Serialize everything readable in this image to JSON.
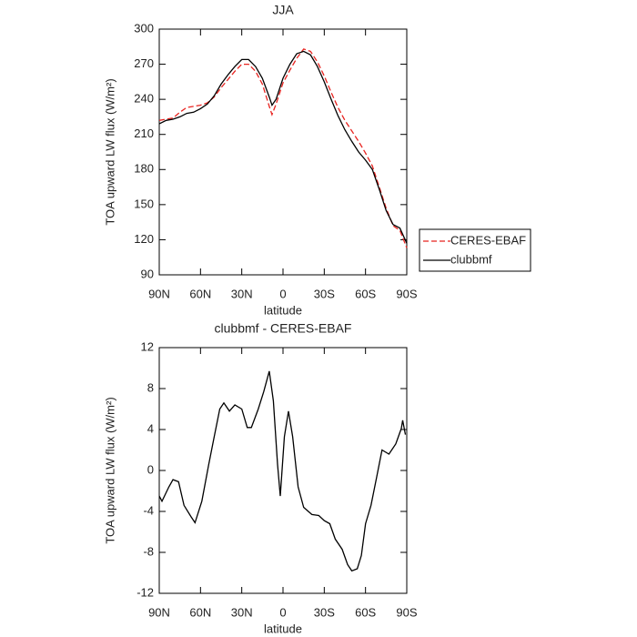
{
  "chart_data": [
    {
      "type": "line",
      "title": "JJA",
      "xlabel": "latitude",
      "ylabel": "TOA upward LW flux (W/m²)",
      "x": [
        90,
        85,
        80,
        75,
        70,
        65,
        60,
        55,
        50,
        45,
        40,
        35,
        30,
        25,
        20,
        15,
        10,
        8,
        5,
        0,
        -5,
        -10,
        -15,
        -20,
        -25,
        -30,
        -35,
        -40,
        -45,
        -50,
        -55,
        -60,
        -65,
        -70,
        -75,
        -80,
        -85,
        -90
      ],
      "series": [
        {
          "name": "CERES-EBAF",
          "color": "#e8231f",
          "dash": true,
          "values": [
            222,
            223,
            224,
            229,
            233,
            234,
            235,
            237,
            242,
            250,
            257,
            264,
            270,
            270,
            264,
            253,
            234,
            227,
            236,
            254,
            265,
            275,
            283,
            281,
            272,
            260,
            246,
            233,
            222,
            213,
            204,
            194,
            183,
            165,
            147,
            132,
            128,
            113
          ]
        },
        {
          "name": "clubbmf",
          "color": "#000000",
          "dash": false,
          "values": [
            219,
            222,
            223,
            225,
            228,
            229,
            232,
            236,
            243,
            253,
            261,
            268,
            274,
            274,
            268,
            258,
            242,
            235,
            240,
            258,
            270,
            279,
            281,
            278,
            268,
            255,
            240,
            226,
            214,
            204,
            195,
            188,
            180,
            163,
            145,
            133,
            130,
            117
          ]
        }
      ],
      "xlim": [
        90,
        -90
      ],
      "xticks": [
        {
          "value": 90,
          "label": "90N"
        },
        {
          "value": 60,
          "label": "60N"
        },
        {
          "value": 30,
          "label": "30N"
        },
        0,
        {
          "value": -30,
          "label": "30S"
        },
        {
          "value": -60,
          "label": "60S"
        },
        {
          "value": -90,
          "label": "90S"
        }
      ],
      "ylim": [
        90,
        300
      ],
      "yticks": [
        90,
        120,
        150,
        180,
        210,
        240,
        270,
        300
      ],
      "legend": "right"
    },
    {
      "type": "line",
      "title": "clubbmf - CERES-EBAF",
      "xlabel": "latitude",
      "ylabel": "TOA upward LW flux (W/m²)",
      "x": [
        90,
        88,
        83,
        80,
        76,
        72,
        67,
        64,
        59,
        54,
        50,
        46,
        43,
        39,
        35,
        30,
        26,
        23,
        18,
        14,
        10,
        7,
        4,
        2,
        -1,
        -4,
        -7,
        -11,
        -15,
        -21,
        -26,
        -30,
        -34,
        -38,
        -43,
        -47,
        -50,
        -54,
        -57,
        -60,
        -64,
        -68,
        -72,
        -77,
        -82,
        -86,
        -87,
        -89
      ],
      "series": [
        {
          "name": "clubbmf - CERES-EBAF",
          "color": "#000000",
          "dash": false,
          "values": [
            -2.5,
            -3,
            -1.6,
            -0.9,
            -1.1,
            -3.4,
            -4.5,
            -5.1,
            -3,
            0.6,
            3.3,
            6,
            6.6,
            5.8,
            6.4,
            6,
            4.2,
            4.2,
            6,
            7.7,
            9.7,
            6.8,
            0.6,
            -2.5,
            3.3,
            5.8,
            3.3,
            -1.6,
            -3.6,
            -4.3,
            -4.4,
            -4.9,
            -5.2,
            -6.7,
            -7.7,
            -9.2,
            -9.8,
            -9.6,
            -8.3,
            -5.2,
            -3.4,
            -0.7,
            2,
            1.6,
            2.6,
            4.1,
            4.9,
            3.5
          ]
        }
      ],
      "xlim": [
        90,
        -90
      ],
      "xticks": [
        {
          "value": 90,
          "label": "90N"
        },
        {
          "value": 60,
          "label": "60N"
        },
        {
          "value": 30,
          "label": "30N"
        },
        0,
        {
          "value": -30,
          "label": "30S"
        },
        {
          "value": -60,
          "label": "60S"
        },
        {
          "value": -90,
          "label": "90S"
        }
      ],
      "ylim": [
        -12,
        12
      ],
      "yticks": [
        -12,
        -8,
        -4,
        0,
        4,
        8,
        12
      ]
    }
  ]
}
